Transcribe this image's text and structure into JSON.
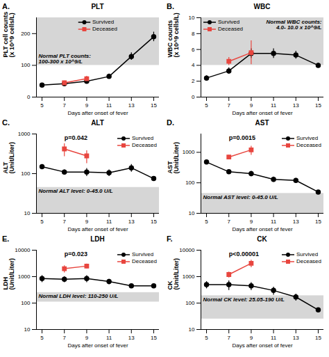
{
  "chart_data": [
    {
      "panel": "A.",
      "title": "PLT",
      "type": "line",
      "xlabel": "Days after onset of fever",
      "ylabel": "PLT cell counts (x 10^9 cells/L)",
      "x": [
        5,
        7,
        9,
        11,
        13,
        15
      ],
      "xlim": [
        4.5,
        15.5
      ],
      "xticks": [
        5,
        7,
        9,
        11,
        13,
        15
      ],
      "ylim": [
        0,
        250
      ],
      "yticks": [
        0,
        100,
        200
      ],
      "legend": "top",
      "normal_range": [
        100,
        300
      ],
      "normal_label": "Normal PLT counts: 100-300 x 10^9/L",
      "series": [
        {
          "name": "Survived",
          "color": "#000000",
          "marker": "circle",
          "values": [
            38,
            42,
            50,
            65,
            128,
            190
          ],
          "error": [
            5,
            4,
            5,
            8,
            12,
            15
          ]
        },
        {
          "name": "Deceased",
          "color": "#e8463f",
          "marker": "square",
          "values": [
            null,
            45,
            58,
            null,
            null,
            null
          ],
          "error": [
            null,
            6,
            8,
            null,
            null,
            null
          ]
        }
      ]
    },
    {
      "panel": "B.",
      "title": "WBC",
      "type": "line",
      "xlabel": "Days after onset of fever",
      "ylabel": "WBC counts (x 10^9 cells/L)",
      "x": [
        5,
        7,
        9,
        11,
        13,
        15
      ],
      "xlim": [
        4.5,
        15.5
      ],
      "xticks": [
        5,
        7,
        9,
        11,
        13,
        15
      ],
      "ylim": [
        0,
        10
      ],
      "yticks": [
        0,
        2,
        4,
        6,
        8,
        10
      ],
      "legend": "top left",
      "normal_range": [
        4,
        10
      ],
      "normal_label": "Normal WBC counts: 4.0- 10.0 x 10^9/L",
      "series": [
        {
          "name": "Survived",
          "color": "#000000",
          "marker": "circle",
          "values": [
            2.4,
            3.3,
            5.5,
            5.5,
            5.3,
            4.0
          ],
          "error": [
            0.3,
            0.4,
            0.6,
            0.6,
            0.5,
            0.3
          ]
        },
        {
          "name": "Deceased",
          "color": "#e8463f",
          "marker": "square",
          "values": [
            null,
            4.5,
            5.6,
            null,
            null,
            null
          ],
          "error": [
            null,
            0.5,
            1.5,
            null,
            null,
            null
          ]
        }
      ]
    },
    {
      "panel": "C.",
      "title": "ALT",
      "type": "line",
      "log": "y",
      "xlabel": "Days after onset of fever",
      "ylabel": "ALT (Unit/Liter)",
      "x": [
        5,
        7,
        9,
        11,
        13,
        15
      ],
      "xlim": [
        4.5,
        15.5
      ],
      "xticks": [
        5,
        7,
        9,
        11,
        13,
        15
      ],
      "ylim": [
        10,
        1000
      ],
      "yticks": [
        10,
        100,
        1000
      ],
      "legend": "top right",
      "normal_range": [
        0,
        45
      ],
      "normal_label": "Normal ALT level: 0-45.0 U/L",
      "annotation": "p=0.042",
      "series": [
        {
          "name": "Survived",
          "color": "#000000",
          "marker": "circle",
          "values": [
            150,
            110,
            110,
            105,
            140,
            75
          ],
          "error": [
            20,
            15,
            25,
            20,
            30,
            10
          ]
        },
        {
          "name": "Deceased",
          "color": "#e8463f",
          "marker": "square",
          "values": [
            null,
            420,
            280,
            null,
            null,
            null
          ],
          "error": [
            null,
            150,
            100,
            null,
            null,
            null
          ]
        }
      ]
    },
    {
      "panel": "D.",
      "title": "AST",
      "type": "line",
      "log": "y",
      "xlabel": "Days after onset of fever",
      "ylabel": "AST (Unit/Liter)",
      "x": [
        5,
        7,
        9,
        11,
        13,
        15
      ],
      "xlim": [
        4.5,
        15.5
      ],
      "xticks": [
        5,
        7,
        9,
        11,
        13,
        15
      ],
      "ylim": [
        10,
        4000
      ],
      "yticks": [
        10,
        100,
        1000
      ],
      "legend": "top right",
      "normal_range": [
        0,
        45
      ],
      "normal_label": "Normal AST level: 0-45.0 U/L",
      "annotation": "p=0.0015",
      "series": [
        {
          "name": "Survived",
          "color": "#000000",
          "marker": "circle",
          "values": [
            480,
            230,
            200,
            130,
            120,
            50
          ],
          "error": [
            60,
            30,
            40,
            25,
            20,
            5
          ]
        },
        {
          "name": "Deceased",
          "color": "#e8463f",
          "marker": "square",
          "values": [
            null,
            700,
            1200,
            null,
            null,
            null
          ],
          "error": [
            null,
            100,
            400,
            null,
            null,
            null
          ]
        }
      ]
    },
    {
      "panel": "E.",
      "title": "LDH",
      "type": "line",
      "log": "y",
      "xlabel": "Days after onset of fever",
      "ylabel": "LDH (Unit/Liter)",
      "x": [
        5,
        7,
        9,
        11,
        13,
        15
      ],
      "xlim": [
        4.5,
        15.5
      ],
      "xticks": [
        5,
        7,
        9,
        11,
        13,
        15
      ],
      "ylim": [
        10,
        10000
      ],
      "yticks": [
        10,
        100,
        1000,
        10000
      ],
      "legend": "top right",
      "normal_range": [
        110,
        250
      ],
      "normal_label": "Normal LDH level: 110-250 U/L",
      "annotation": "p=0.023",
      "series": [
        {
          "name": "Survived",
          "color": "#000000",
          "marker": "circle",
          "values": [
            850,
            800,
            850,
            650,
            450,
            450
          ],
          "error": [
            250,
            200,
            250,
            150,
            50,
            30
          ]
        },
        {
          "name": "Deceased",
          "color": "#e8463f",
          "marker": "square",
          "values": [
            null,
            2000,
            2500,
            null,
            null,
            null
          ],
          "error": [
            null,
            600,
            500,
            null,
            null,
            null
          ]
        }
      ]
    },
    {
      "panel": "F.",
      "title": "CK",
      "type": "line",
      "log": "y",
      "xlabel": "Days after onset of fever",
      "ylabel": "CK (Unit/Liter)",
      "x": [
        5,
        7,
        9,
        11,
        13,
        15
      ],
      "xlim": [
        4.5,
        15.5
      ],
      "xticks": [
        5,
        7,
        9,
        11,
        13,
        15
      ],
      "ylim": [
        10,
        10000
      ],
      "yticks": [
        10,
        100,
        1000,
        10000
      ],
      "legend": "top right",
      "normal_range": [
        25.05,
        190
      ],
      "normal_label": "Normal CK level: 25.05-190 U/L",
      "annotation": "p<0.00001",
      "series": [
        {
          "name": "Survived",
          "color": "#000000",
          "marker": "circle",
          "values": [
            500,
            500,
            450,
            300,
            170,
            55
          ],
          "error": [
            150,
            200,
            150,
            100,
            50,
            10
          ]
        },
        {
          "name": "Deceased",
          "color": "#e8463f",
          "marker": "square",
          "values": [
            null,
            1200,
            3200,
            null,
            null,
            null
          ],
          "error": [
            null,
            300,
            1000,
            null,
            null,
            null
          ]
        }
      ]
    }
  ]
}
